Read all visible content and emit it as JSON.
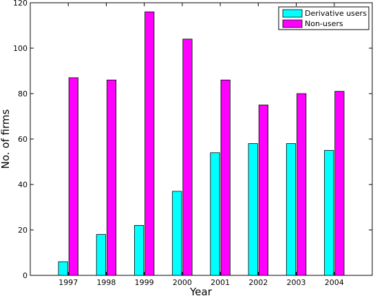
{
  "chart_data": {
    "type": "bar",
    "xlabel": "Year",
    "ylabel": "No. of firms",
    "categories": [
      "1997",
      "1998",
      "1999",
      "2000",
      "2001",
      "2002",
      "2003",
      "2004"
    ],
    "ylim": [
      0,
      120
    ],
    "yticks": [
      0,
      20,
      40,
      60,
      80,
      100,
      120
    ],
    "grid": false,
    "legend_position": "top-right",
    "series": [
      {
        "name": "Derivative users",
        "color": "#00ffff",
        "values": [
          6,
          18,
          22,
          37,
          54,
          58,
          58,
          55
        ]
      },
      {
        "name": "Non-users",
        "color": "#ff00ff",
        "values": [
          87,
          86,
          116,
          104,
          86,
          75,
          80,
          81
        ]
      }
    ]
  }
}
